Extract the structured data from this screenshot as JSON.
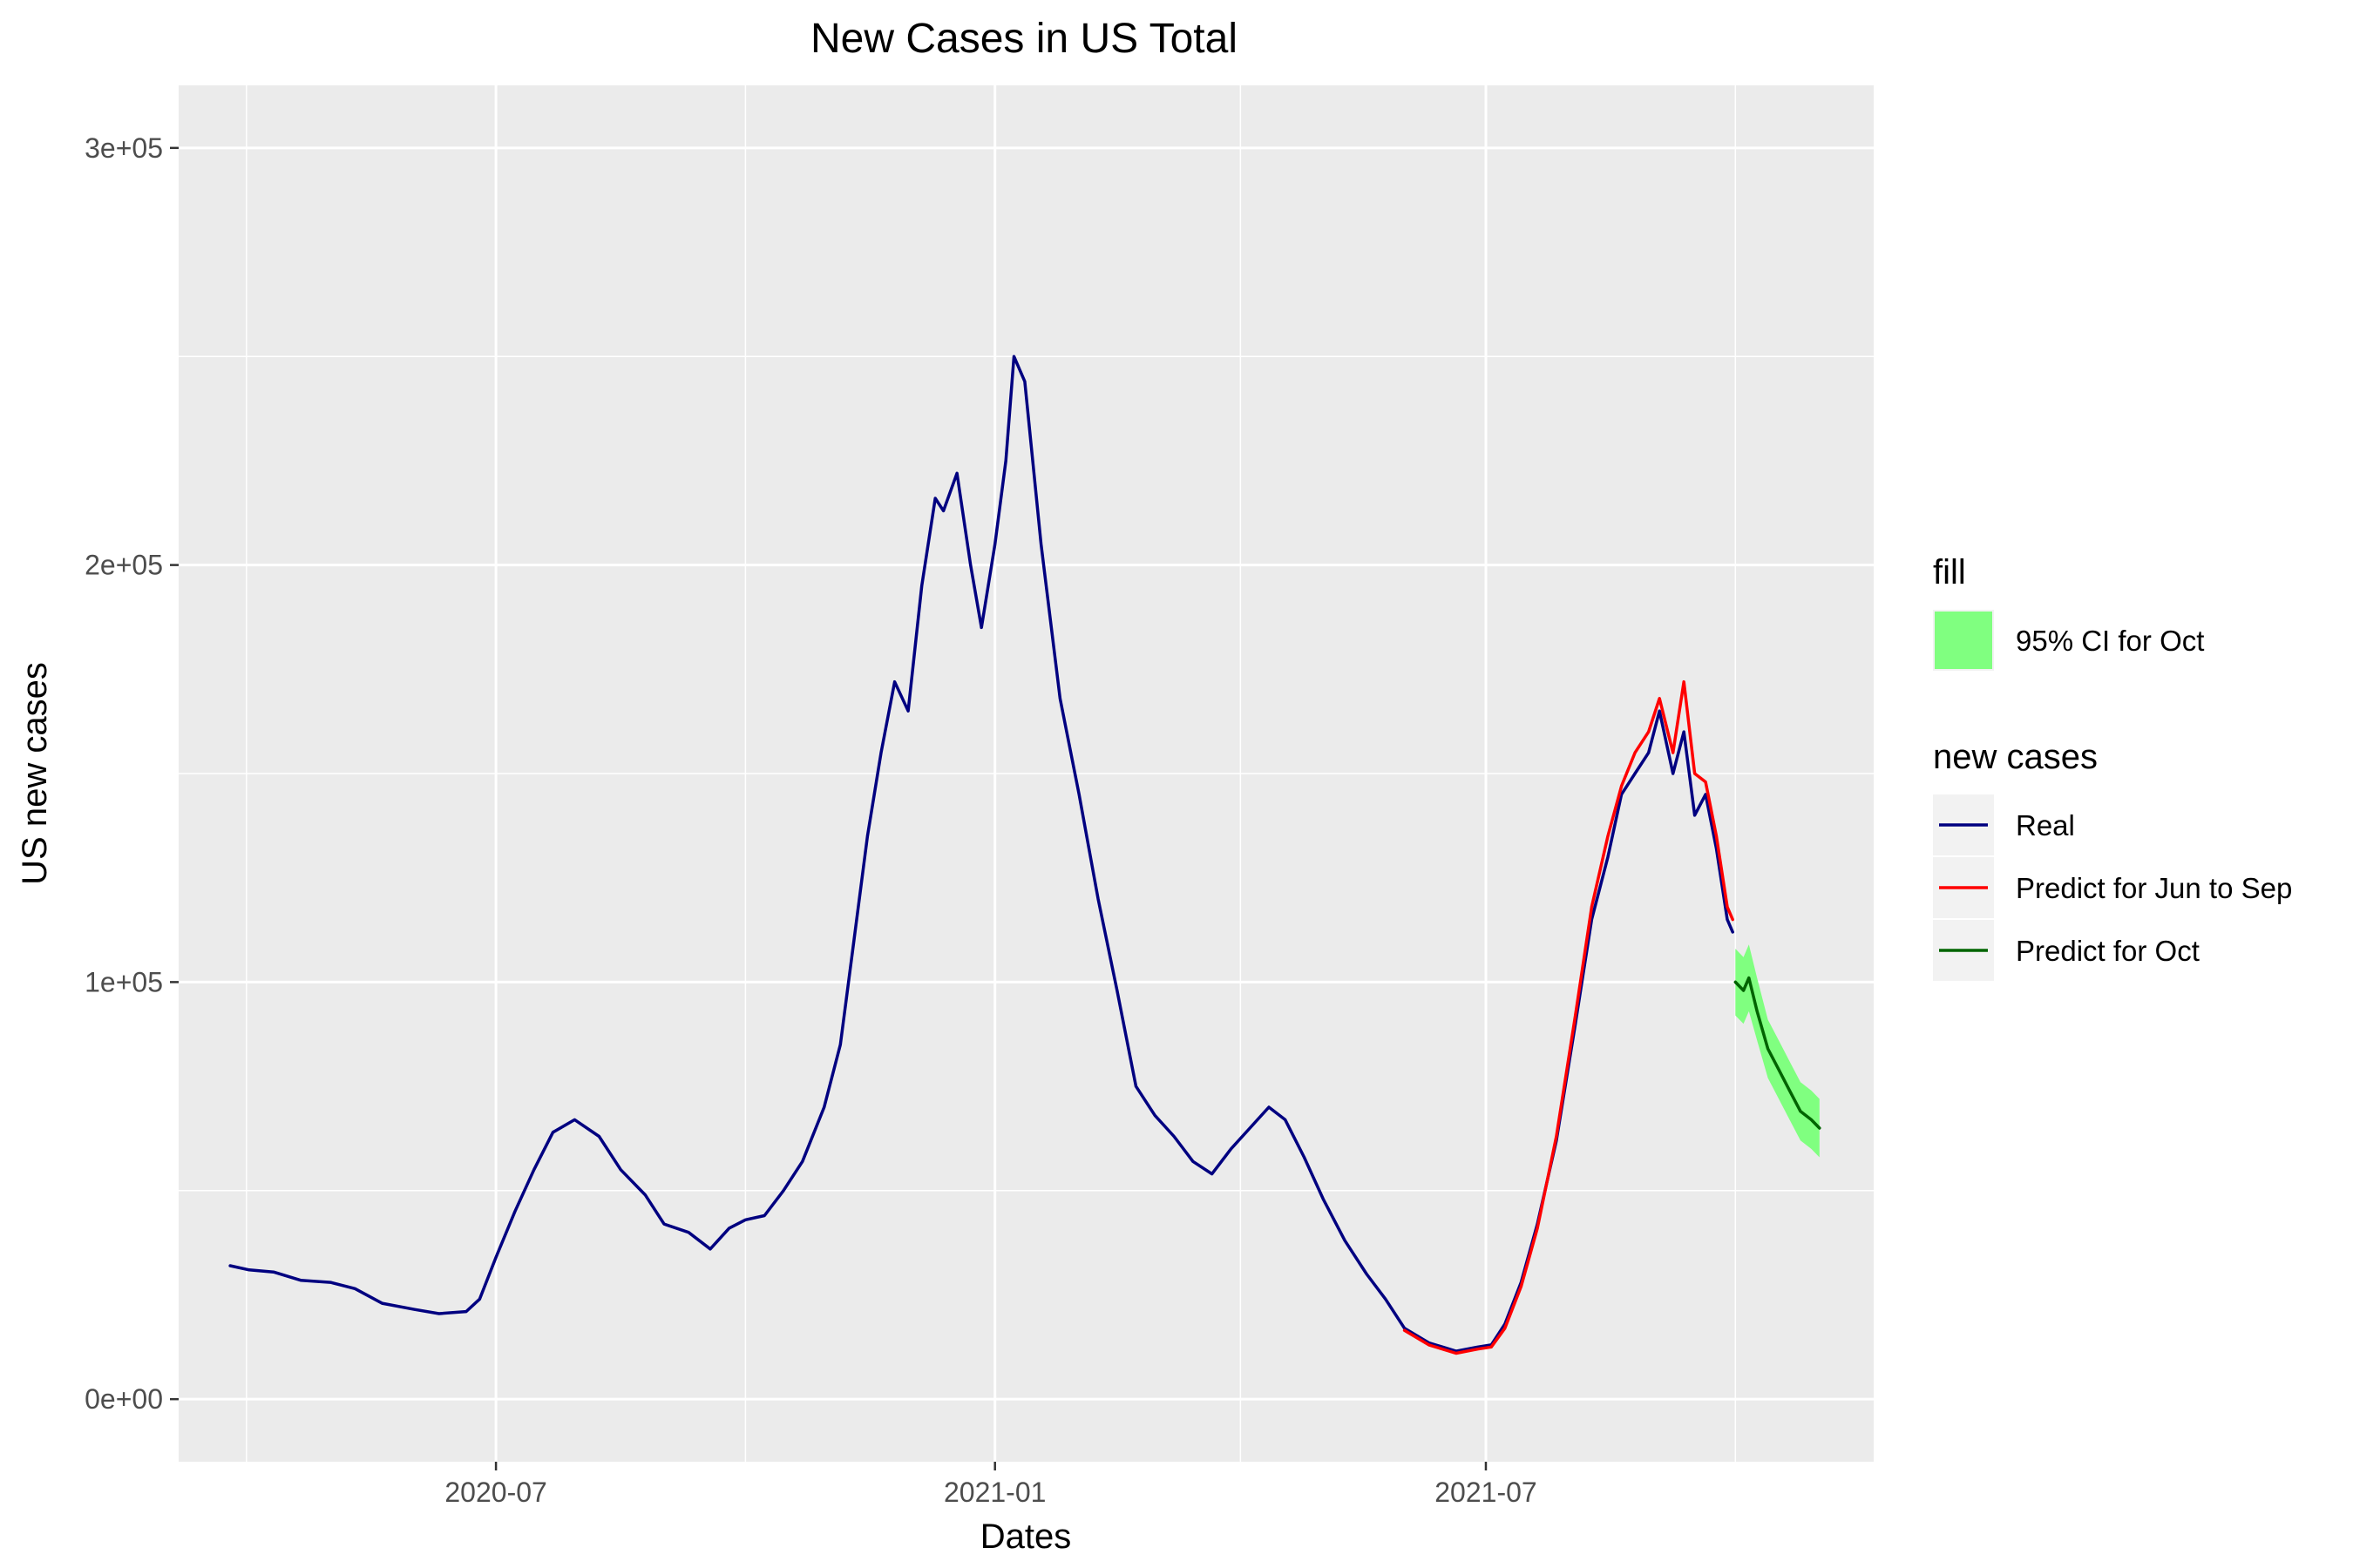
{
  "chart_data": {
    "type": "line",
    "title": "New Cases in US Total",
    "xlabel": "Dates",
    "ylabel": "US new cases",
    "xlim": [
      "2020-03-06",
      "2021-11-21"
    ],
    "ylim": [
      -15000,
      315000
    ],
    "x_ticks": [
      {
        "date": "2020-07-01",
        "label": "2020-07"
      },
      {
        "date": "2021-01-01",
        "label": "2021-01"
      },
      {
        "date": "2021-07-01",
        "label": "2021-07"
      }
    ],
    "y_ticks": [
      {
        "value": 0,
        "label": "0e+00"
      },
      {
        "value": 100000,
        "label": "1e+05"
      },
      {
        "value": 200000,
        "label": "2e+05"
      },
      {
        "value": 300000,
        "label": "3e+05"
      }
    ],
    "grid": true,
    "legend_position": "right",
    "series": [
      {
        "name": "Real",
        "color": "#000080",
        "points": [
          [
            "2020-03-25",
            32000
          ],
          [
            "2020-04-01",
            31000
          ],
          [
            "2020-04-10",
            30500
          ],
          [
            "2020-04-20",
            28500
          ],
          [
            "2020-05-01",
            28000
          ],
          [
            "2020-05-10",
            26500
          ],
          [
            "2020-05-20",
            23000
          ],
          [
            "2020-06-01",
            21500
          ],
          [
            "2020-06-10",
            20500
          ],
          [
            "2020-06-20",
            21000
          ],
          [
            "2020-06-25",
            24000
          ],
          [
            "2020-07-01",
            34000
          ],
          [
            "2020-07-08",
            45000
          ],
          [
            "2020-07-15",
            55000
          ],
          [
            "2020-07-22",
            64000
          ],
          [
            "2020-07-30",
            67000
          ],
          [
            "2020-08-08",
            63000
          ],
          [
            "2020-08-16",
            55000
          ],
          [
            "2020-08-25",
            49000
          ],
          [
            "2020-09-01",
            42000
          ],
          [
            "2020-09-10",
            40000
          ],
          [
            "2020-09-18",
            36000
          ],
          [
            "2020-09-25",
            41000
          ],
          [
            "2020-10-01",
            43000
          ],
          [
            "2020-10-08",
            44000
          ],
          [
            "2020-10-15",
            50000
          ],
          [
            "2020-10-22",
            57000
          ],
          [
            "2020-10-30",
            70000
          ],
          [
            "2020-11-05",
            85000
          ],
          [
            "2020-11-10",
            110000
          ],
          [
            "2020-11-15",
            135000
          ],
          [
            "2020-11-20",
            155000
          ],
          [
            "2020-11-25",
            172000
          ],
          [
            "2020-11-30",
            165000
          ],
          [
            "2020-12-05",
            195000
          ],
          [
            "2020-12-10",
            216000
          ],
          [
            "2020-12-13",
            213000
          ],
          [
            "2020-12-18",
            222000
          ],
          [
            "2020-12-23",
            200000
          ],
          [
            "2020-12-27",
            185000
          ],
          [
            "2021-01-01",
            205000
          ],
          [
            "2021-01-05",
            225000
          ],
          [
            "2021-01-08",
            250000
          ],
          [
            "2021-01-12",
            244000
          ],
          [
            "2021-01-18",
            205000
          ],
          [
            "2021-01-25",
            168000
          ],
          [
            "2021-02-01",
            145000
          ],
          [
            "2021-02-08",
            120000
          ],
          [
            "2021-02-15",
            98000
          ],
          [
            "2021-02-22",
            75000
          ],
          [
            "2021-03-01",
            68000
          ],
          [
            "2021-03-08",
            63000
          ],
          [
            "2021-03-15",
            57000
          ],
          [
            "2021-03-22",
            54000
          ],
          [
            "2021-03-29",
            60000
          ],
          [
            "2021-04-05",
            65000
          ],
          [
            "2021-04-12",
            70000
          ],
          [
            "2021-04-18",
            67000
          ],
          [
            "2021-04-25",
            58000
          ],
          [
            "2021-05-02",
            48000
          ],
          [
            "2021-05-10",
            38000
          ],
          [
            "2021-05-18",
            30000
          ],
          [
            "2021-05-25",
            24000
          ],
          [
            "2021-06-01",
            17000
          ],
          [
            "2021-06-10",
            13500
          ],
          [
            "2021-06-20",
            11500
          ],
          [
            "2021-06-28",
            12500
          ],
          [
            "2021-07-03",
            13000
          ],
          [
            "2021-07-08",
            18000
          ],
          [
            "2021-07-14",
            28000
          ],
          [
            "2021-07-20",
            42000
          ],
          [
            "2021-07-27",
            62000
          ],
          [
            "2021-08-03",
            90000
          ],
          [
            "2021-08-09",
            115000
          ],
          [
            "2021-08-15",
            130000
          ],
          [
            "2021-08-20",
            145000
          ],
          [
            "2021-08-25",
            150000
          ],
          [
            "2021-08-30",
            155000
          ],
          [
            "2021-09-03",
            165000
          ],
          [
            "2021-09-08",
            150000
          ],
          [
            "2021-09-12",
            160000
          ],
          [
            "2021-09-16",
            140000
          ],
          [
            "2021-09-20",
            145000
          ],
          [
            "2021-09-24",
            132000
          ],
          [
            "2021-09-28",
            115000
          ],
          [
            "2021-09-30",
            112000
          ]
        ]
      },
      {
        "name": "Predict for Jun to Sep",
        "color": "#FF0000",
        "points": [
          [
            "2021-06-01",
            16500
          ],
          [
            "2021-06-10",
            13000
          ],
          [
            "2021-06-20",
            11000
          ],
          [
            "2021-06-28",
            12000
          ],
          [
            "2021-07-03",
            12500
          ],
          [
            "2021-07-08",
            17000
          ],
          [
            "2021-07-14",
            27000
          ],
          [
            "2021-07-20",
            41000
          ],
          [
            "2021-07-27",
            63000
          ],
          [
            "2021-08-03",
            92000
          ],
          [
            "2021-08-09",
            118000
          ],
          [
            "2021-08-15",
            135000
          ],
          [
            "2021-08-20",
            147000
          ],
          [
            "2021-08-25",
            155000
          ],
          [
            "2021-08-30",
            160000
          ],
          [
            "2021-09-03",
            168000
          ],
          [
            "2021-09-08",
            155000
          ],
          [
            "2021-09-12",
            172000
          ],
          [
            "2021-09-16",
            150000
          ],
          [
            "2021-09-20",
            148000
          ],
          [
            "2021-09-24",
            135000
          ],
          [
            "2021-09-28",
            118000
          ],
          [
            "2021-09-30",
            115000
          ]
        ]
      },
      {
        "name": "Predict for Oct",
        "color": "#006400",
        "points": [
          [
            "2021-10-01",
            100000
          ],
          [
            "2021-10-04",
            98000
          ],
          [
            "2021-10-06",
            101000
          ],
          [
            "2021-10-09",
            93000
          ],
          [
            "2021-10-13",
            84000
          ],
          [
            "2021-10-17",
            79000
          ],
          [
            "2021-10-21",
            74000
          ],
          [
            "2021-10-25",
            69000
          ],
          [
            "2021-10-29",
            67000
          ],
          [
            "2021-11-01",
            65000
          ]
        ]
      }
    ],
    "ribbon": {
      "name": "95% CI for Oct",
      "color": "#80FF80",
      "points": [
        [
          "2021-10-01",
          92000,
          108000
        ],
        [
          "2021-10-04",
          90000,
          106000
        ],
        [
          "2021-10-06",
          93000,
          109000
        ],
        [
          "2021-10-09",
          86000,
          101000
        ],
        [
          "2021-10-13",
          77000,
          91000
        ],
        [
          "2021-10-17",
          72000,
          86000
        ],
        [
          "2021-10-21",
          67000,
          81000
        ],
        [
          "2021-10-25",
          62000,
          76000
        ],
        [
          "2021-10-29",
          60000,
          74000
        ],
        [
          "2021-11-01",
          58000,
          72000
        ]
      ]
    },
    "legends": [
      {
        "title": "fill",
        "items": [
          {
            "label": "95% CI for Oct",
            "type": "fill",
            "color": "#80FF80"
          }
        ]
      },
      {
        "title": "new cases",
        "items": [
          {
            "label": "Real",
            "type": "line",
            "color": "#000080"
          },
          {
            "label": "Predict for Jun to Sep",
            "type": "line",
            "color": "#FF0000"
          },
          {
            "label": "Predict for Oct",
            "type": "line",
            "color": "#006400"
          }
        ]
      }
    ]
  }
}
